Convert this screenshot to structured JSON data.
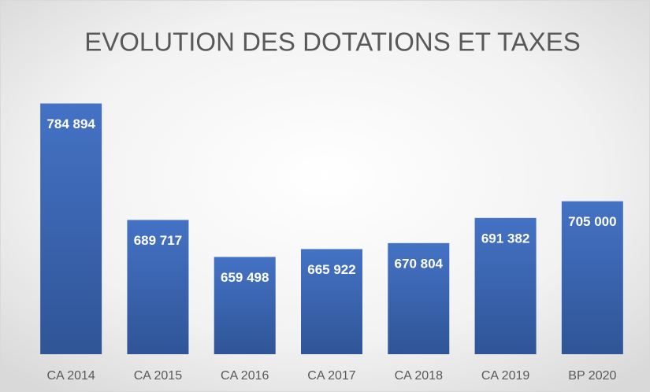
{
  "chart_data": {
    "type": "bar",
    "title": "EVOLUTION DES DOTATIONS ET TAXES",
    "categories": [
      "CA 2014",
      "CA 2015",
      "CA 2016",
      "CA 2017",
      "CA 2018",
      "CA 2019",
      "BP 2020"
    ],
    "values": [
      784894,
      689717,
      659498,
      665922,
      670804,
      691382,
      705000
    ],
    "value_labels": [
      "784 894",
      "689 717",
      "659 498",
      "665 922",
      "670 804",
      "691 382",
      "705 000"
    ],
    "color": "#4472c4",
    "ylim": [
      580000,
      800000
    ]
  }
}
